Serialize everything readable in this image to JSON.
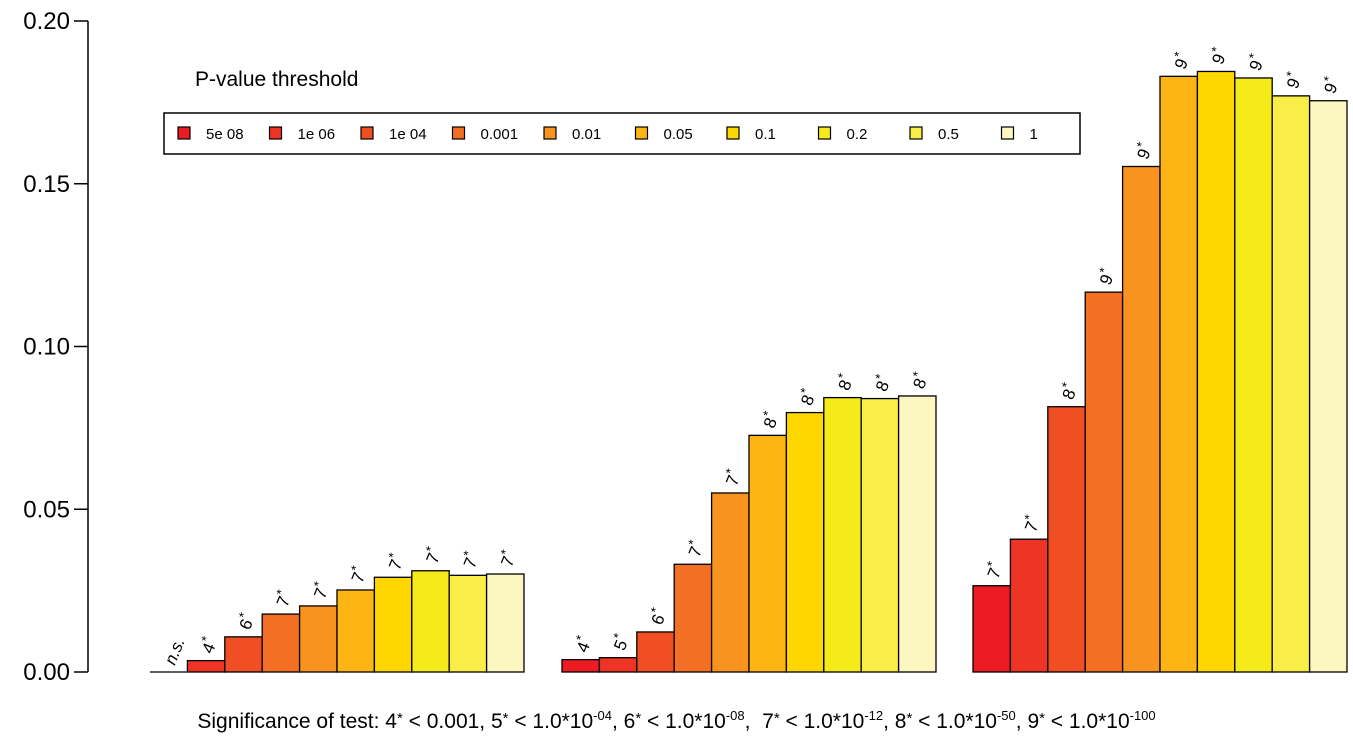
{
  "chart_data": {
    "type": "bar",
    "title": "",
    "xlabel": "",
    "ylabel": "",
    "ylim": [
      0,
      0.2
    ],
    "yticks": [
      "0.00",
      "0.05",
      "0.10",
      "0.15",
      "0.20"
    ],
    "grid": false,
    "legend": {
      "title": "P-value threshold",
      "placement": "top-left",
      "entries": [
        "5e 08",
        "1e 06",
        "1e 04",
        "0.001",
        "0.01",
        "0.05",
        "0.1",
        "0.2",
        "0.5",
        "1"
      ]
    },
    "colors": [
      "#ED1C24",
      "#EE3424",
      "#F04E23",
      "#F26F23",
      "#F7931E",
      "#FDB515",
      "#FED700",
      "#F5EB1B",
      "#F9EE48",
      "#FCF6C0"
    ],
    "groups": [
      {
        "values": [
          0.0,
          0.0035,
          0.0108,
          0.0178,
          0.0203,
          0.0252,
          0.0291,
          0.0311,
          0.0297,
          0.0301
        ],
        "labels": [
          "n.s.",
          "4*",
          "6*",
          "7*",
          "7*",
          "7*",
          "7*",
          "7*",
          "7*",
          "7*"
        ]
      },
      {
        "values": [
          0.0038,
          0.0044,
          0.0123,
          0.0331,
          0.055,
          0.0727,
          0.0797,
          0.0843,
          0.084,
          0.0848
        ],
        "labels": [
          "4*",
          "5*",
          "6*",
          "7*",
          "7*",
          "8*",
          "8*",
          "8*",
          "8*",
          "8*"
        ]
      },
      {
        "values": [
          0.0265,
          0.0408,
          0.0815,
          0.1167,
          0.1553,
          0.183,
          0.1845,
          0.1825,
          0.177,
          0.1755
        ],
        "labels": [
          "7*",
          "7*",
          "8*",
          "9*",
          "9*",
          "9*",
          "9*",
          "9*",
          "9*",
          "9*"
        ]
      }
    ],
    "caption": {
      "prefix": "Significance of test: ",
      "items": [
        {
          "code": "4",
          "text": " < 0.001",
          "exp": ""
        },
        {
          "code": "5",
          "text": " < 1.0*10",
          "exp": "-04"
        },
        {
          "code": "6",
          "text": " < 1.0*10",
          "exp": "-08"
        },
        {
          "code": "7",
          "text": " < 1.0*10",
          "exp": "-12"
        },
        {
          "code": "8",
          "text": " < 1.0*10",
          "exp": "-50"
        },
        {
          "code": "9",
          "text": " < 1.0*10",
          "exp": "-100"
        }
      ]
    }
  }
}
